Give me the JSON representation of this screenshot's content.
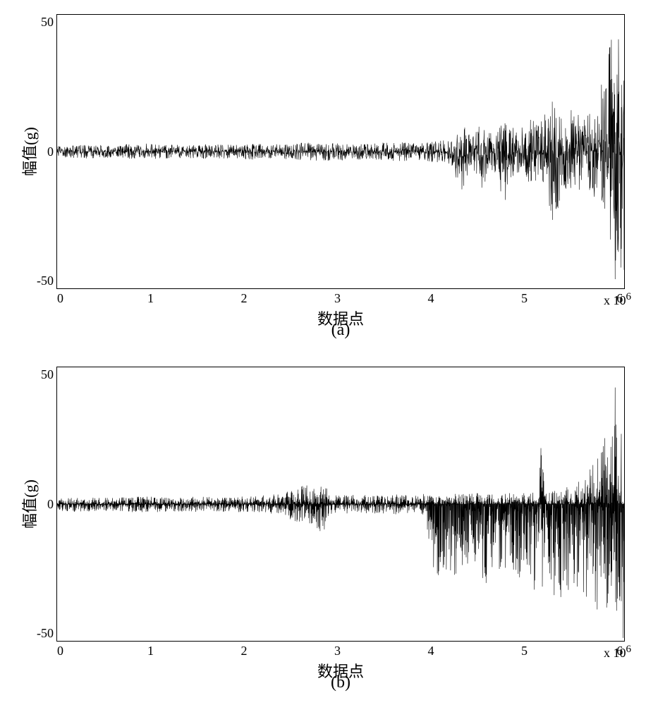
{
  "figure": {
    "background_color": "#ffffff",
    "line_color": "#000000",
    "border_color": "#000000",
    "tick_fontsize": 18,
    "label_fontsize": 22,
    "subfig_fontsize": 24
  },
  "chart_a": {
    "type": "line",
    "subfig_label": "(a)",
    "xlabel": "数据点",
    "ylabel": "幅值(g)",
    "xlim": [
      0,
      6200000
    ],
    "ylim": [
      -50,
      50
    ],
    "xtick_labels": [
      "0",
      "1",
      "2",
      "3",
      "4",
      "5",
      "6"
    ],
    "ytick_labels": [
      "50",
      "0",
      "-50"
    ],
    "exponent": "x 10",
    "exponent_sup": "6",
    "envelope_profile": [
      {
        "x": 0.0,
        "amp": 0.04,
        "bias": 0
      },
      {
        "x": 0.05,
        "amp": 0.05,
        "bias": 0
      },
      {
        "x": 0.1,
        "amp": 0.045,
        "bias": 0
      },
      {
        "x": 0.15,
        "amp": 0.06,
        "bias": 0
      },
      {
        "x": 0.2,
        "amp": 0.05,
        "bias": 0
      },
      {
        "x": 0.25,
        "amp": 0.055,
        "bias": 0
      },
      {
        "x": 0.3,
        "amp": 0.05,
        "bias": 0
      },
      {
        "x": 0.35,
        "amp": 0.06,
        "bias": 0
      },
      {
        "x": 0.4,
        "amp": 0.055,
        "bias": 0
      },
      {
        "x": 0.45,
        "amp": 0.07,
        "bias": 0
      },
      {
        "x": 0.5,
        "amp": 0.065,
        "bias": 0
      },
      {
        "x": 0.55,
        "amp": 0.06,
        "bias": 0
      },
      {
        "x": 0.6,
        "amp": 0.07,
        "bias": 0
      },
      {
        "x": 0.65,
        "amp": 0.075,
        "bias": 0
      },
      {
        "x": 0.68,
        "amp": 0.08,
        "bias": 0
      },
      {
        "x": 0.7,
        "amp": 0.12,
        "bias": -0.02
      },
      {
        "x": 0.71,
        "amp": 0.3,
        "bias": -0.05
      },
      {
        "x": 0.73,
        "amp": 0.1,
        "bias": 0
      },
      {
        "x": 0.75,
        "amp": 0.25,
        "bias": -0.03
      },
      {
        "x": 0.77,
        "amp": 0.12,
        "bias": 0
      },
      {
        "x": 0.79,
        "amp": 0.35,
        "bias": -0.05
      },
      {
        "x": 0.81,
        "amp": 0.15,
        "bias": 0
      },
      {
        "x": 0.83,
        "amp": 0.3,
        "bias": -0.03
      },
      {
        "x": 0.85,
        "amp": 0.2,
        "bias": 0
      },
      {
        "x": 0.87,
        "amp": 0.4,
        "bias": -0.05
      },
      {
        "x": 0.88,
        "amp": 0.5,
        "bias": -0.08
      },
      {
        "x": 0.89,
        "amp": 0.25,
        "bias": 0
      },
      {
        "x": 0.91,
        "amp": 0.35,
        "bias": 0
      },
      {
        "x": 0.93,
        "amp": 0.25,
        "bias": 0
      },
      {
        "x": 0.945,
        "amp": 0.3,
        "bias": 0
      },
      {
        "x": 0.955,
        "amp": 0.45,
        "bias": 0
      },
      {
        "x": 0.965,
        "amp": 0.6,
        "bias": 0
      },
      {
        "x": 0.975,
        "amp": 0.8,
        "bias": 0
      },
      {
        "x": 0.985,
        "amp": 0.95,
        "bias": 0
      },
      {
        "x": 0.995,
        "amp": 0.98,
        "bias": 0
      },
      {
        "x": 1.0,
        "amp": 0.95,
        "bias": 0
      }
    ],
    "density_per_norm_x": 1200
  },
  "chart_b": {
    "type": "line",
    "subfig_label": "(b)",
    "xlabel": "数据点",
    "ylabel": "幅值(g)",
    "xlim": [
      0,
      6200000
    ],
    "ylim": [
      -50,
      50
    ],
    "xtick_labels": [
      "0",
      "1",
      "2",
      "3",
      "4",
      "5",
      "6"
    ],
    "ytick_labels": [
      "50",
      "0",
      "-50"
    ],
    "exponent": "x 10",
    "exponent_sup": "6",
    "envelope_profile": [
      {
        "x": 0.0,
        "amp_up": 0.04,
        "amp_dn": 0.05
      },
      {
        "x": 0.05,
        "amp_up": 0.05,
        "amp_dn": 0.06
      },
      {
        "x": 0.1,
        "amp_up": 0.045,
        "amp_dn": 0.05
      },
      {
        "x": 0.15,
        "amp_up": 0.06,
        "amp_dn": 0.065
      },
      {
        "x": 0.2,
        "amp_up": 0.05,
        "amp_dn": 0.055
      },
      {
        "x": 0.25,
        "amp_up": 0.055,
        "amp_dn": 0.06
      },
      {
        "x": 0.3,
        "amp_up": 0.05,
        "amp_dn": 0.055
      },
      {
        "x": 0.35,
        "amp_up": 0.06,
        "amp_dn": 0.065
      },
      {
        "x": 0.4,
        "amp_up": 0.08,
        "amp_dn": 0.08
      },
      {
        "x": 0.42,
        "amp_up": 0.12,
        "amp_dn": 0.15
      },
      {
        "x": 0.44,
        "amp_up": 0.14,
        "amp_dn": 0.18
      },
      {
        "x": 0.45,
        "amp_up": 0.1,
        "amp_dn": 0.2
      },
      {
        "x": 0.47,
        "amp_up": 0.18,
        "amp_dn": 0.25
      },
      {
        "x": 0.48,
        "amp_up": 0.06,
        "amp_dn": 0.08
      },
      {
        "x": 0.5,
        "amp_up": 0.07,
        "amp_dn": 0.07
      },
      {
        "x": 0.55,
        "amp_up": 0.065,
        "amp_dn": 0.07
      },
      {
        "x": 0.6,
        "amp_up": 0.07,
        "amp_dn": 0.075
      },
      {
        "x": 0.65,
        "amp_up": 0.075,
        "amp_dn": 0.08
      },
      {
        "x": 0.66,
        "amp_up": 0.07,
        "amp_dn": 0.52
      },
      {
        "x": 0.67,
        "amp_up": 0.06,
        "amp_dn": 0.55
      },
      {
        "x": 0.69,
        "amp_up": 0.08,
        "amp_dn": 0.58
      },
      {
        "x": 0.71,
        "amp_up": 0.07,
        "amp_dn": 0.54
      },
      {
        "x": 0.73,
        "amp_up": 0.08,
        "amp_dn": 0.6
      },
      {
        "x": 0.75,
        "amp_up": 0.08,
        "amp_dn": 0.56
      },
      {
        "x": 0.77,
        "amp_up": 0.07,
        "amp_dn": 0.62
      },
      {
        "x": 0.79,
        "amp_up": 0.09,
        "amp_dn": 0.58
      },
      {
        "x": 0.81,
        "amp_up": 0.08,
        "amp_dn": 0.65
      },
      {
        "x": 0.83,
        "amp_up": 0.08,
        "amp_dn": 0.6
      },
      {
        "x": 0.85,
        "amp_up": 0.1,
        "amp_dn": 0.68
      },
      {
        "x": 0.855,
        "amp_up": 0.9,
        "amp_dn": 0.6
      },
      {
        "x": 0.86,
        "amp_up": 0.1,
        "amp_dn": 0.65
      },
      {
        "x": 0.87,
        "amp_up": 0.1,
        "amp_dn": 0.7
      },
      {
        "x": 0.89,
        "amp_up": 0.12,
        "amp_dn": 0.72
      },
      {
        "x": 0.91,
        "amp_up": 0.15,
        "amp_dn": 0.68
      },
      {
        "x": 0.93,
        "amp_up": 0.18,
        "amp_dn": 0.75
      },
      {
        "x": 0.94,
        "amp_up": 0.3,
        "amp_dn": 0.55
      },
      {
        "x": 0.95,
        "amp_up": 0.35,
        "amp_dn": 0.8
      },
      {
        "x": 0.96,
        "amp_up": 0.45,
        "amp_dn": 0.85
      },
      {
        "x": 0.97,
        "amp_up": 0.6,
        "amp_dn": 0.9
      },
      {
        "x": 0.98,
        "amp_up": 0.8,
        "amp_dn": 0.95
      },
      {
        "x": 0.99,
        "amp_up": 0.95,
        "amp_dn": 0.98
      },
      {
        "x": 1.0,
        "amp_up": 0.95,
        "amp_dn": 0.98
      }
    ],
    "density_per_norm_x": 1200
  }
}
